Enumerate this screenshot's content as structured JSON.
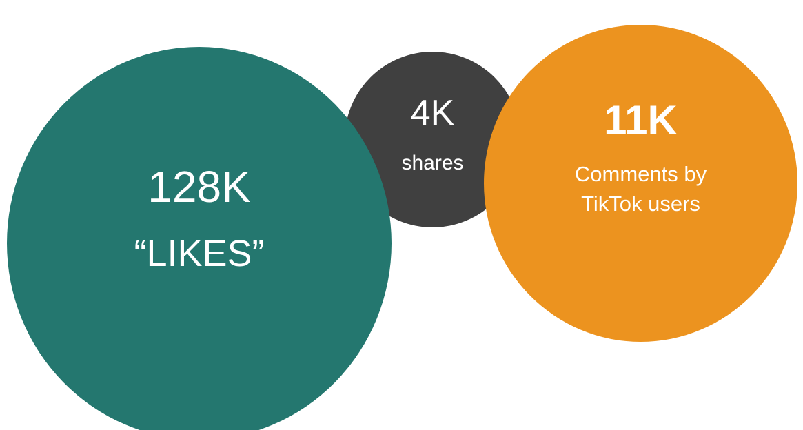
{
  "colors": {
    "likes": "#24776F",
    "shares": "#404040",
    "comments": "#EC931F",
    "text": "#FFFFFF"
  },
  "stats": {
    "likes": {
      "value": "128K",
      "label": "“LIKES”"
    },
    "shares": {
      "value": "4K",
      "label": "shares"
    },
    "comments": {
      "value": "11K",
      "label": "Comments by\nTikTok users"
    }
  }
}
